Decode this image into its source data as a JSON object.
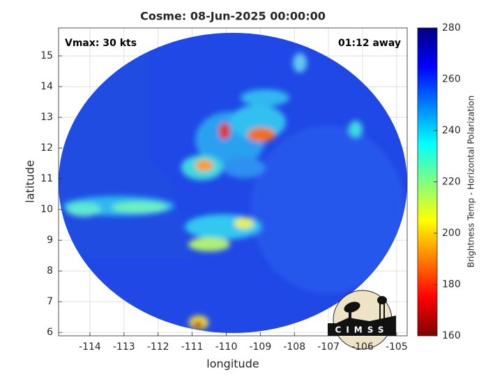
{
  "chart_data": {
    "type": "map",
    "title": "Cosme: 08-Jun-2025 00:00:00",
    "xlabel": "longitude",
    "ylabel": "latitude",
    "annotations": [
      "Vmax: 30 kts",
      "01:12 away"
    ],
    "xlim": [
      -114.92,
      -104.69
    ],
    "ylim": [
      5.89,
      15.91
    ],
    "xticks": [
      -114,
      -113,
      -112,
      -111,
      -110,
      -109,
      -108,
      -107,
      -106,
      -105
    ],
    "yticks": [
      6,
      7,
      8,
      9,
      10,
      11,
      12,
      13,
      14,
      15
    ],
    "grid": true,
    "colorbar": {
      "label": "Brightness Temp - Horizontal Polarization",
      "lim": [
        160,
        280
      ],
      "ticks": [
        160,
        180,
        200,
        220,
        240,
        260,
        280
      ]
    },
    "logo": "CIMSS"
  }
}
